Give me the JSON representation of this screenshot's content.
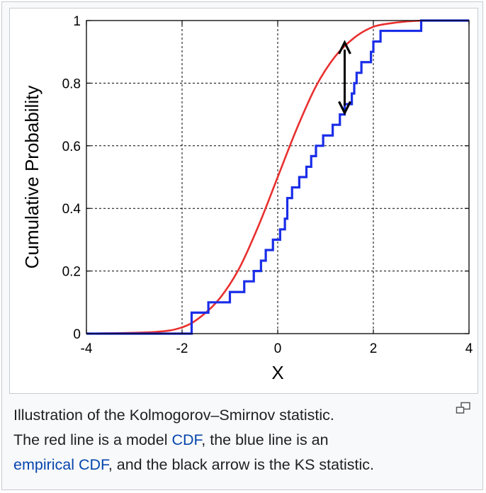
{
  "chart_data": {
    "type": "line",
    "title": "",
    "xlabel": "X",
    "ylabel": "Cumulative Probability",
    "xlim": [
      -4,
      4
    ],
    "ylim": [
      0,
      1
    ],
    "xticks": [
      -4,
      -2,
      0,
      2,
      4
    ],
    "yticks": [
      0,
      0.2,
      0.4,
      0.6,
      0.8,
      1
    ],
    "xtick_labels": [
      "-4",
      "-2",
      "0",
      "2",
      "4"
    ],
    "ytick_labels": [
      "0",
      "0.2",
      "0.4",
      "0.6",
      "0.8",
      "1"
    ],
    "grid": true,
    "series": [
      {
        "color": "#e8302f",
        "kind": "smooth-cdf",
        "x": [
          -4,
          -2.6,
          -2.0,
          -1.6,
          -1.2,
          -0.8,
          -0.4,
          0.0,
          0.4,
          0.8,
          1.2,
          1.6,
          2.0,
          2.4,
          2.8,
          3.2,
          4
        ],
        "y": [
          0.0,
          0.005,
          0.02,
          0.055,
          0.115,
          0.21,
          0.345,
          0.5,
          0.655,
          0.79,
          0.885,
          0.945,
          0.98,
          0.992,
          0.998,
          1.0,
          1.0
        ]
      },
      {
        "color": "#1a2ee8",
        "kind": "step-ecdf",
        "x": [
          -4,
          -1.9,
          -1.8,
          -1.45,
          -1.0,
          -0.7,
          -0.5,
          -0.35,
          -0.25,
          -0.1,
          0.05,
          0.15,
          0.2,
          0.3,
          0.45,
          0.6,
          0.7,
          0.8,
          0.95,
          1.15,
          1.3,
          1.4,
          1.55,
          1.6,
          1.65,
          1.75,
          1.8,
          1.95,
          2.0,
          2.15,
          2.25,
          2.35,
          3.0,
          4
        ],
        "y": [
          0.0,
          0.0,
          0.067,
          0.1,
          0.133,
          0.167,
          0.2,
          0.233,
          0.267,
          0.3,
          0.333,
          0.367,
          0.433,
          0.467,
          0.5,
          0.533,
          0.567,
          0.6,
          0.633,
          0.667,
          0.7,
          0.733,
          0.767,
          0.8,
          0.833,
          0.867,
          0.867,
          0.9,
          0.933,
          0.967,
          0.967,
          0.967,
          1.0,
          1.0
        ]
      }
    ],
    "annotation": {
      "type": "double-arrow",
      "x": 1.4,
      "y_from": 0.705,
      "y_to": 0.93,
      "color": "#000000"
    }
  },
  "caption": {
    "line1": "Illustration of the Kolmogorov–Smirnov statistic.",
    "line2_pre": "The red line is a model ",
    "link_cdf": "CDF",
    "line2_post": ", the blue line is an",
    "link_ecdf": "empirical CDF",
    "line3_post": ", and the black arrow is the KS statistic."
  },
  "icons": {
    "magnify": "magnify-icon"
  },
  "colors": {
    "link": "#0645ad",
    "border": "#c8ccd1",
    "caption_bg": "#f8f9fa"
  }
}
